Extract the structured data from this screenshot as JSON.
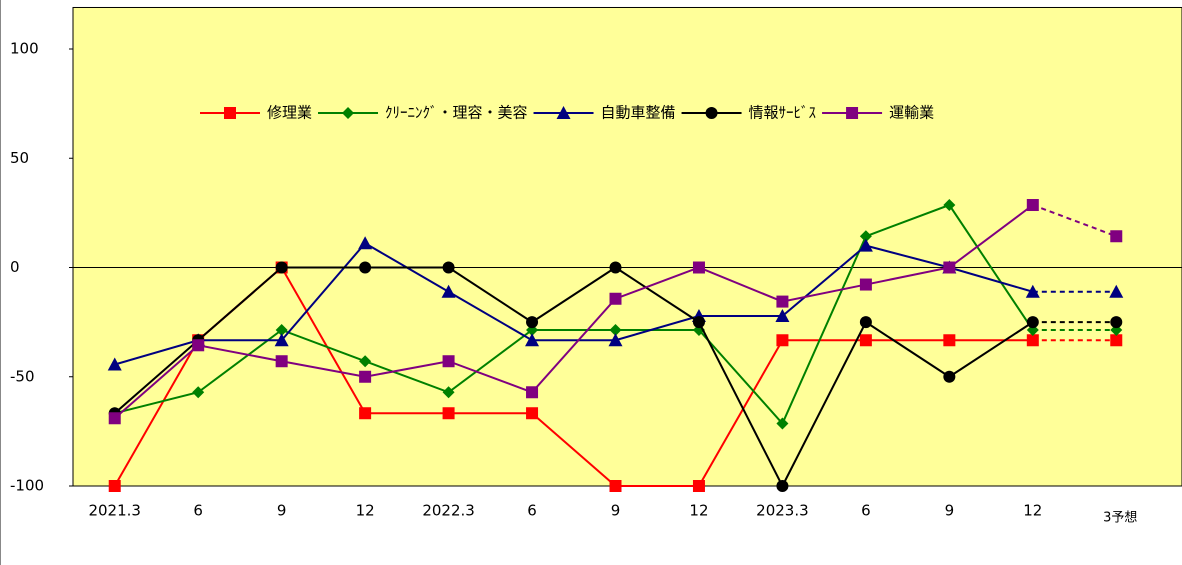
{
  "chart_data": {
    "type": "line",
    "categories": [
      "2021.3",
      "6",
      "9",
      "12",
      "2022.3",
      "6",
      "9",
      "12",
      "2023.3",
      "6",
      "9",
      "12",
      "3予想"
    ],
    "series": [
      {
        "name": "修理業",
        "color": "#ff0000",
        "marker": "square",
        "values": [
          -100,
          -33.3,
          0,
          -66.7,
          -66.7,
          -66.7,
          -100,
          -100,
          -33.3,
          -33.3,
          -33.3,
          -33.3,
          -33.3
        ]
      },
      {
        "name": "ｸﾘｰﾆﾝｸﾞ・理容・美容",
        "color": "#008000",
        "marker": "diamond",
        "values": [
          -66.7,
          -57.1,
          -28.6,
          -42.9,
          -57.1,
          -28.6,
          -28.6,
          -28.6,
          -71.4,
          14.3,
          28.6,
          -28.6,
          -28.6
        ]
      },
      {
        "name": "自動車整備",
        "color": "#000080",
        "marker": "triangle",
        "values": [
          -44.4,
          -33.3,
          -33.3,
          11.1,
          -11.1,
          -33.3,
          -33.3,
          -22.2,
          -22.2,
          10,
          0,
          -11.1,
          -11.1
        ]
      },
      {
        "name": "情報ｻｰﾋﾞｽ",
        "color": "#000000",
        "marker": "circle",
        "values": [
          -66.7,
          -33.3,
          0,
          0,
          0,
          -25,
          0,
          -25,
          -100,
          -25,
          -50,
          -25,
          -25
        ]
      },
      {
        "name": "運輸業",
        "color": "#800080",
        "marker": "square",
        "values": [
          -69,
          -35.6,
          -42.9,
          -50,
          -42.9,
          -57.1,
          -14.3,
          0,
          -15.6,
          -7.8,
          0,
          28.6,
          14.3
        ]
      }
    ],
    "ylim": [
      -100,
      119
    ],
    "yticks": [
      -100,
      -50,
      0,
      50,
      100
    ],
    "last_segment_dashed": true,
    "background": "#ffff99"
  }
}
